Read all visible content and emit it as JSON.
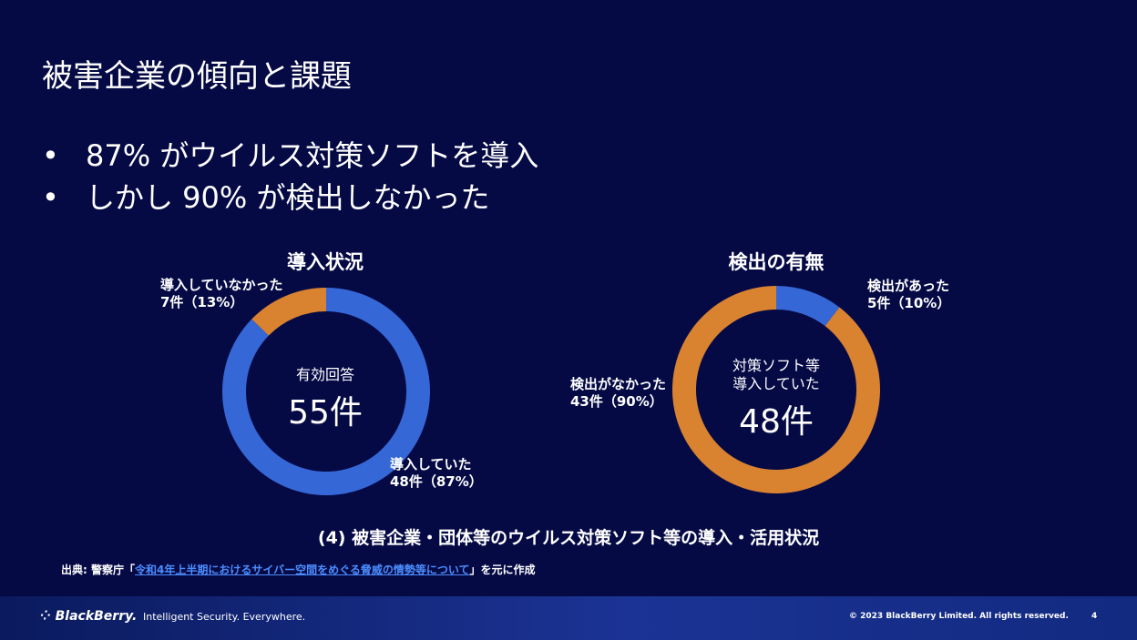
{
  "slide": {
    "title": "被害企業の傾向と課題",
    "bullets": [
      "87% がウイルス対策ソフトを導入",
      "しかし 90% が検出しなかった"
    ],
    "caption": "(4) 被害企業・団体等のウイルス対策ソフト等の導入・活用状況",
    "source": {
      "prefix": "出典: 警察庁「",
      "link": "令和4年上半期におけるサイバー空間をめぐる脅威の情勢等について",
      "suffix": "」を元に作成"
    }
  },
  "colors": {
    "blue": "#3567d6",
    "orange": "#d98230",
    "background": "#050a45"
  },
  "chart_data": [
    {
      "type": "pie",
      "title": "導入状況",
      "center_label": "有効回答",
      "center_value": "55件",
      "slices": [
        {
          "label": "導入していた",
          "display": "48件（87%）",
          "value": 48,
          "color": "#3567d6"
        },
        {
          "label": "導入していなかった",
          "display": "7件（13%）",
          "value": 7,
          "color": "#d98230"
        }
      ]
    },
    {
      "type": "pie",
      "title": "検出の有無",
      "center_label": "対策ソフト等\n導入していた",
      "center_label_lines": [
        "対策ソフト等",
        "導入していた"
      ],
      "center_value": "48件",
      "slices": [
        {
          "label": "検出があった",
          "display": "5件（10%）",
          "value": 5,
          "color": "#3567d6"
        },
        {
          "label": "検出がなかった",
          "display": "43件（90%）",
          "value": 43,
          "color": "#d98230"
        }
      ]
    }
  ],
  "footer": {
    "brand": "BlackBerry.",
    "tagline": "Intelligent Security. Everywhere.",
    "copyright": "© 2023 BlackBerry Limited. All rights reserved.",
    "page_number": "4"
  }
}
